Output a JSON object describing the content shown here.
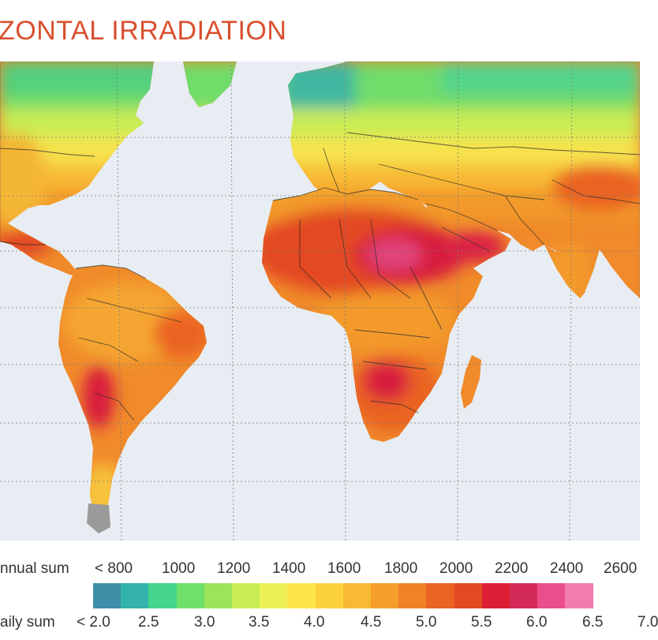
{
  "title": "ZONTAL IRRADIATION",
  "colors": {
    "title": "#d9502e",
    "ocean": "#e8edf3",
    "grid": "#7a7a7a",
    "border": "#2b2b2b",
    "ice": "#9a9a9a"
  },
  "legend": {
    "annual_label": "nnual sum",
    "daily_label": "aily sum",
    "annual_ticks": [
      "< 800",
      "1000",
      "1200",
      "1400",
      "1600",
      "1800",
      "2000",
      "2200",
      "2400",
      "2600"
    ],
    "daily_ticks": [
      "< 2.0",
      "2.5",
      "3.0",
      "3.5",
      "4.0",
      "4.5",
      "5.0",
      "5.5",
      "6.0",
      "6.5",
      "7.0"
    ],
    "scale_colors": [
      "#3f8fa8",
      "#33b3aa",
      "#44d48c",
      "#6fe06a",
      "#9be55a",
      "#c8ec55",
      "#ecf055",
      "#fde748",
      "#fbd23c",
      "#f8b933",
      "#f49e2c",
      "#f08228",
      "#ea6324",
      "#e34a22",
      "#dc1f35",
      "#d42a5a",
      "#ea4f8b",
      "#f27cb0"
    ]
  }
}
